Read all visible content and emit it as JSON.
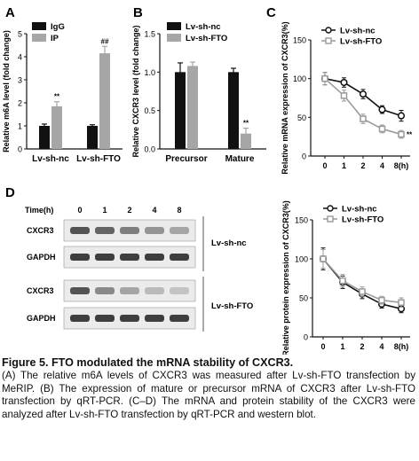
{
  "panels": {
    "A": "A",
    "B": "B",
    "C": "C",
    "D": "D"
  },
  "chart_data": [
    {
      "panel": "A",
      "type": "bar",
      "categories": [
        "Lv-sh-nc",
        "Lv-sh-FTO"
      ],
      "series": [
        {
          "name": "IgG",
          "values": [
            1.0,
            1.0
          ],
          "errors": [
            0.08,
            0.05
          ],
          "color": "#111111"
        },
        {
          "name": "IP",
          "values": [
            1.85,
            4.15
          ],
          "errors": [
            0.2,
            0.3
          ],
          "color": "#a6a6a6"
        }
      ],
      "significance": [
        {
          "category": "Lv-sh-nc",
          "series": "IP",
          "label": "**"
        },
        {
          "category": "Lv-sh-FTO",
          "series": "IP",
          "label": "##"
        }
      ],
      "ylabel": "Relative m6A level (fold change)",
      "ylim": [
        0,
        5
      ],
      "yticks": [
        "0",
        "1",
        "2",
        "3",
        "4",
        "5"
      ],
      "legend": "top-left"
    },
    {
      "panel": "B",
      "type": "bar",
      "categories": [
        "Precursor",
        "Mature"
      ],
      "series": [
        {
          "name": "Lv-sh-nc",
          "values": [
            1.0,
            1.0
          ],
          "errors": [
            0.12,
            0.05
          ],
          "color": "#111111"
        },
        {
          "name": "Lv-sh-FTO",
          "values": [
            1.08,
            0.2
          ],
          "errors": [
            0.05,
            0.07
          ],
          "color": "#a6a6a6"
        }
      ],
      "significance": [
        {
          "category": "Mature",
          "series": "Lv-sh-FTO",
          "label": "**"
        }
      ],
      "ylabel": "Relative CXCR3 level (fold change)",
      "ylim": [
        0,
        1.5
      ],
      "yticks": [
        "0.0",
        "0.5",
        "1.0",
        "1.5"
      ],
      "legend": "top"
    },
    {
      "panel": "C",
      "type": "line",
      "x": [
        0,
        1,
        2,
        4,
        8
      ],
      "xticks": [
        "0",
        "1",
        "2",
        "4",
        "8(h)"
      ],
      "series": [
        {
          "name": "Lv-sh-nc",
          "values": [
            100,
            95,
            80,
            60,
            52
          ],
          "errors": [
            8,
            6,
            6,
            5,
            7
          ],
          "color": "#111111",
          "marker": "circle"
        },
        {
          "name": "Lv-sh-FTO",
          "values": [
            100,
            78,
            48,
            35,
            28
          ],
          "errors": [
            8,
            7,
            6,
            5,
            5
          ],
          "color": "#9a9a9a",
          "marker": "square"
        }
      ],
      "significance": [
        {
          "x": 8,
          "label": "**"
        }
      ],
      "ylabel": "Relative mRNA expression of CXCR3(%)",
      "ylim": [
        0,
        150
      ],
      "yticks": [
        "0",
        "50",
        "100",
        "150"
      ],
      "legend": "top-right"
    },
    {
      "panel": "D",
      "type": "line",
      "x": [
        0,
        1,
        2,
        4,
        8
      ],
      "xticks": [
        "0",
        "1",
        "2",
        "4",
        "8(h)"
      ],
      "series": [
        {
          "name": "Lv-sh-nc",
          "values": [
            100,
            70,
            55,
            42,
            36
          ],
          "errors": [
            14,
            8,
            6,
            5,
            5
          ],
          "color": "#111111",
          "marker": "circle"
        },
        {
          "name": "Lv-sh-FTO",
          "values": [
            100,
            72,
            58,
            47,
            44
          ],
          "errors": [
            12,
            8,
            6,
            5,
            6
          ],
          "color": "#9a9a9a",
          "marker": "square"
        }
      ],
      "ylabel": "Relative protein expression of CXCR3(%)",
      "ylim": [
        0,
        150
      ],
      "yticks": [
        "0",
        "50",
        "100",
        "150"
      ],
      "legend": "top-right"
    }
  ],
  "blot": {
    "time_label": "Time(h)",
    "times": [
      "0",
      "1",
      "2",
      "4",
      "8"
    ],
    "rows": [
      {
        "label": "CXCR3",
        "intensity": [
          0.8,
          0.72,
          0.6,
          0.5,
          0.42
        ]
      },
      {
        "label": "GAPDH",
        "intensity": [
          0.9,
          0.9,
          0.9,
          0.9,
          0.9
        ]
      },
      {
        "label": "CXCR3",
        "intensity": [
          0.8,
          0.55,
          0.42,
          0.32,
          0.28
        ]
      },
      {
        "label": "GAPDH",
        "intensity": [
          0.9,
          0.9,
          0.9,
          0.9,
          0.9
        ]
      }
    ],
    "groups": [
      "Lv-sh-nc",
      "Lv-sh-FTO"
    ]
  },
  "caption": {
    "title": "Figure 5. FTO modulated the mRNA stability of CXCR3.",
    "body": "(A) The relative m6A levels of CXCR3 was measured after Lv-sh-FTO transfection by MeRIP. (B) The expression of mature or precursor mRNA of CXCR3 after Lv-sh-FTO transfection by qRT-PCR. (C–D) The mRNA and protein stability of the CXCR3 were analyzed after Lv-sh-FTO transfection by qRT-PCR and western blot."
  }
}
